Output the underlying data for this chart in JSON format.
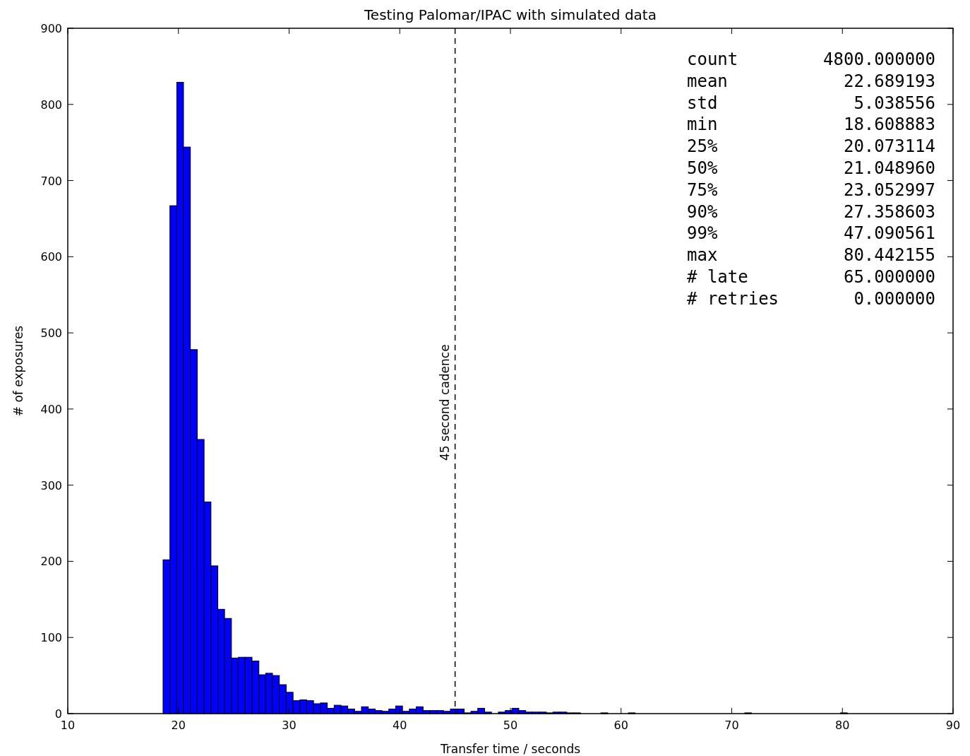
{
  "chart_data": {
    "type": "histogram",
    "title": "Testing Palomar/IPAC with simulated data",
    "xlabel": "Transfer time / seconds",
    "ylabel": "# of exposures",
    "bins": [
      18.61,
      19.23,
      19.85,
      20.46,
      21.08,
      21.7,
      22.32,
      22.94,
      23.56,
      24.17,
      24.79,
      25.41,
      26.03,
      26.65,
      27.27,
      27.88,
      28.5,
      29.12,
      29.74,
      30.36,
      30.98,
      31.59,
      32.21,
      32.83,
      33.45,
      34.07,
      34.69,
      35.3,
      35.92,
      36.54,
      37.16,
      37.78,
      38.4,
      39.01,
      39.63,
      40.25,
      40.87,
      41.49,
      42.11,
      42.72,
      43.34,
      43.96,
      44.58,
      45.2,
      45.82,
      46.43,
      47.05,
      47.67,
      48.29,
      48.91,
      49.53,
      50.14,
      50.76,
      51.38,
      52.0,
      52.62,
      53.24,
      53.85,
      54.47,
      55.09,
      55.71,
      56.33,
      56.95,
      57.56,
      58.18,
      58.8,
      59.42,
      60.04,
      60.66,
      61.27,
      61.89,
      62.51,
      63.13,
      63.75,
      64.37,
      64.98,
      65.6,
      66.22,
      66.84,
      67.46,
      68.08,
      68.69,
      69.31,
      69.93,
      70.55,
      71.17,
      71.79,
      72.4,
      73.02,
      73.64,
      74.26,
      74.88,
      75.5,
      76.11,
      76.73,
      77.35,
      77.97,
      78.59,
      79.21,
      79.82,
      80.44
    ],
    "values": [
      202,
      667,
      829,
      744,
      478,
      360,
      278,
      194,
      137,
      125,
      73,
      74,
      74,
      69,
      51,
      53,
      50,
      38,
      28,
      17,
      18,
      17,
      13,
      14,
      7,
      11,
      10,
      6,
      3,
      9,
      6,
      4,
      3,
      6,
      10,
      3,
      6,
      9,
      4,
      4,
      4,
      3,
      6,
      6,
      1,
      3,
      7,
      2,
      0,
      2,
      4,
      7,
      4,
      2,
      2,
      2,
      1,
      2,
      2,
      1,
      1,
      0,
      0,
      0,
      1,
      0,
      0,
      0,
      1,
      0,
      0,
      0,
      0,
      0,
      0,
      0,
      0,
      0,
      0,
      0,
      0,
      0,
      0,
      0,
      0,
      1,
      0,
      0,
      0,
      0,
      0,
      0,
      0,
      0,
      0,
      0,
      0,
      0,
      0,
      1
    ],
    "color": "#0000ff",
    "xlim": [
      10,
      90
    ],
    "xticks": [
      10,
      20,
      30,
      40,
      50,
      60,
      70,
      80,
      90
    ],
    "ylim": [
      0,
      900
    ],
    "yticks": [
      0,
      100,
      200,
      300,
      400,
      500,
      600,
      700,
      800,
      900
    ],
    "grid": false,
    "ref_lines": [
      {
        "axis": "x",
        "value": 45,
        "label": "45 second cadence",
        "color": "#000000",
        "line_style": "dashed"
      }
    ],
    "annotations": [
      "count  4800.000000",
      "mean  22.689193",
      "std  5.038556",
      "min  18.608883",
      "25%  20.073114",
      "50%  21.048960",
      "75%  23.052997",
      "90%  27.358603",
      "99%  47.090561",
      "max  80.442155",
      "# late  65.000000",
      "# retries  0.000000"
    ]
  }
}
